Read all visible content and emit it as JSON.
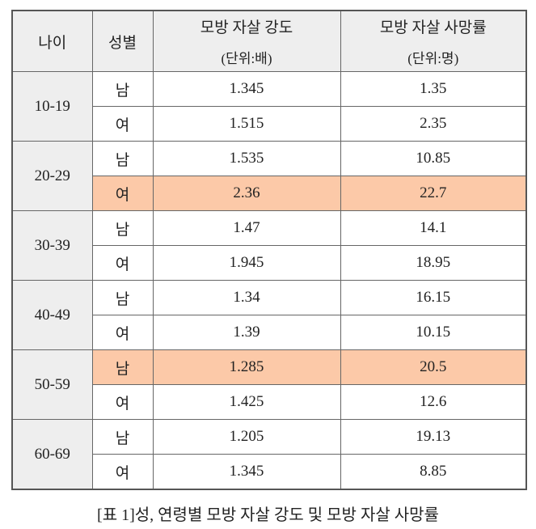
{
  "table": {
    "header": {
      "age": "나이",
      "sex": "성별",
      "intensity": "모방 자살 강도",
      "intensity_unit": "(단위:배)",
      "rate": "모방 자살 사망률",
      "rate_unit": "(단위:명)"
    },
    "groups": [
      {
        "age": "10-19",
        "rows": [
          [
            "남",
            "1.345",
            "1.35"
          ],
          [
            "여",
            "1.515",
            "2.35"
          ]
        ]
      },
      {
        "age": "20-29",
        "rows": [
          [
            "남",
            "1.535",
            "10.85"
          ],
          [
            "여",
            "2.36",
            "22.7"
          ]
        ]
      },
      {
        "age": "30-39",
        "rows": [
          [
            "남",
            "1.47",
            "14.1"
          ],
          [
            "여",
            "1.945",
            "18.95"
          ]
        ]
      },
      {
        "age": "40-49",
        "rows": [
          [
            "남",
            "1.34",
            "16.15"
          ],
          [
            "여",
            "1.39",
            "10.15"
          ]
        ]
      },
      {
        "age": "50-59",
        "rows": [
          [
            "남",
            "1.285",
            "20.5"
          ],
          [
            "여",
            "1.425",
            "12.6"
          ]
        ]
      },
      {
        "age": "60-69",
        "rows": [
          [
            "남",
            "1.205",
            "19.13"
          ],
          [
            "여",
            "1.345",
            "8.85"
          ]
        ]
      }
    ]
  },
  "caption": "[표 1]성, 연령별 모방 자살 강도 및 모방 자살 사망률"
}
